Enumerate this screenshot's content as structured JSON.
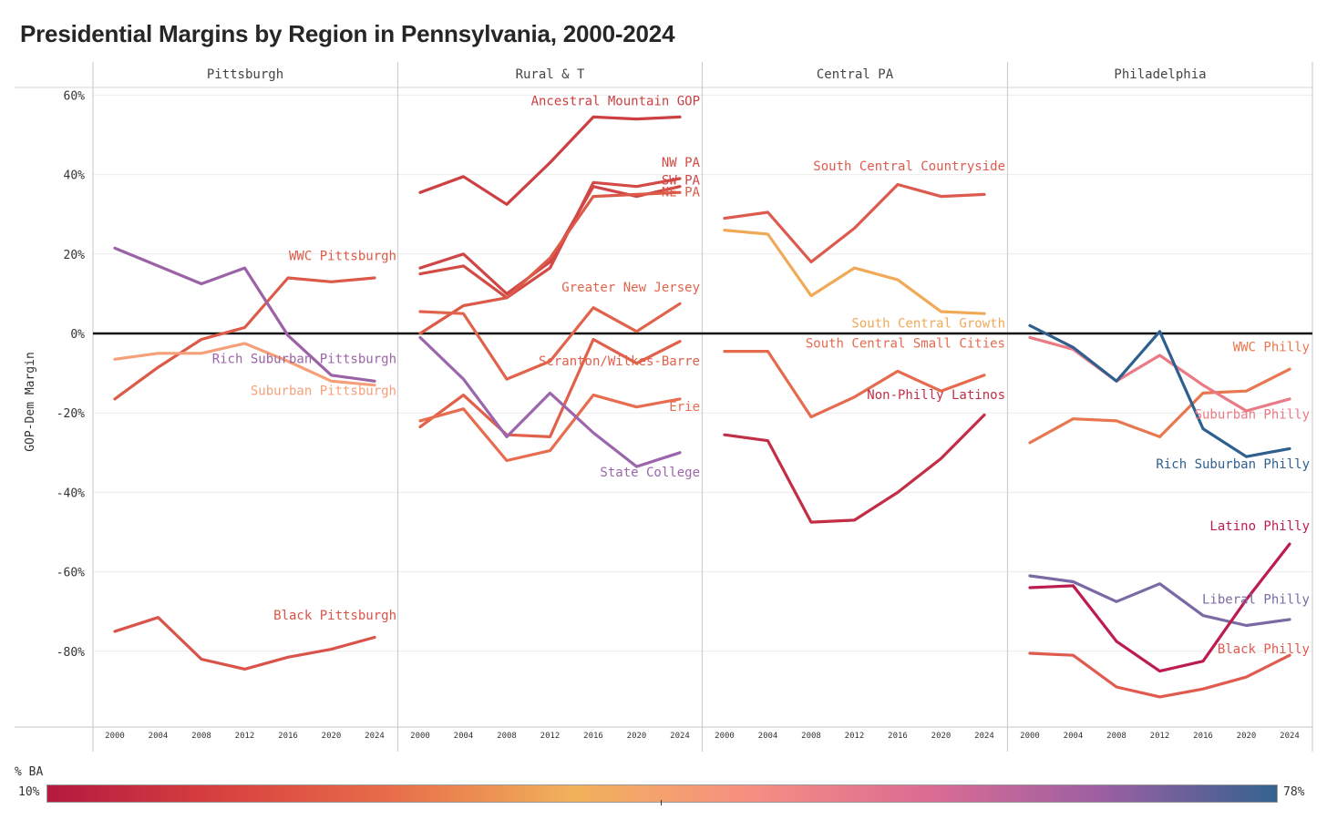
{
  "title": "Presidential Margins by Region in Pennsylvania, 2000-2024",
  "legend": {
    "title": "% BA",
    "min_label": "10%",
    "max_label": "78%",
    "gradient_colors": [
      "#b5193f",
      "#d8413f",
      "#e8704a",
      "#f1b25b",
      "#f68f82",
      "#dc6c93",
      "#9c5fa2",
      "#34628f"
    ]
  },
  "chart_data": {
    "type": "line",
    "ylabel": "GOP-Dem Margin",
    "ylim": [
      -100,
      62
    ],
    "yticks": [
      60,
      40,
      20,
      0,
      -20,
      -40,
      -60,
      -80
    ],
    "ytick_labels": [
      "60%",
      "40%",
      "20%",
      "0%",
      "-20%",
      "-40%",
      "-60%",
      "-80%"
    ],
    "x": [
      2000,
      2004,
      2008,
      2012,
      2016,
      2020,
      2024
    ],
    "x_labels": [
      "2000",
      "2004",
      "2008",
      "2012",
      "2016",
      "2020",
      "2024"
    ],
    "grid": true,
    "zero_line": true,
    "panels": [
      {
        "name": "Pittsburgh",
        "series": [
          {
            "name": "Black Pittsburgh",
            "color": "#d9534a",
            "values": [
              -75,
              -71.5,
              -82,
              -84.5,
              -81.5,
              -79.5,
              -76.5
            ]
          },
          {
            "name": "WWC Pittsburgh",
            "color": "#dc5a48",
            "values": [
              -16.5,
              -8.5,
              -1.5,
              1.5,
              14,
              13,
              14
            ]
          },
          {
            "name": "Suburban Pittsburgh",
            "color": "#f5a07a",
            "values": [
              -6.5,
              -5,
              -5,
              -2.5,
              -7,
              -12,
              -13
            ]
          },
          {
            "name": "Rich Suburban Pittsburgh",
            "color": "#9b62a6",
            "values": [
              21.5,
              17,
              12.5,
              16.5,
              -0.5,
              -10.5,
              -12
            ]
          }
        ]
      },
      {
        "name": "Rural & T",
        "series": [
          {
            "name": "Ancestral Mountain GOP",
            "color": "#cc3f42",
            "values": [
              35.5,
              39.5,
              32.5,
              43,
              54.5,
              54,
              54.5
            ]
          },
          {
            "name": "NW PA",
            "color": "#d44b45",
            "values": [
              15,
              17,
              9,
              16.5,
              38,
              37,
              39
            ]
          },
          {
            "name": "SW PA",
            "color": "#d04646",
            "values": [
              16.5,
              20,
              10,
              18,
              37,
              34.5,
              37
            ]
          },
          {
            "name": "NE PA",
            "color": "#dc5a48",
            "values": [
              0,
              7,
              9,
              19,
              34.5,
              35,
              35.5
            ]
          },
          {
            "name": "Greater New Jersey",
            "color": "#e2634c",
            "values": [
              5.5,
              5,
              -11.5,
              -7,
              6.5,
              0.5,
              7.5
            ]
          },
          {
            "name": "Scranton/Wilkes-Barre",
            "color": "#e0604a",
            "values": [
              -23.5,
              -15.5,
              -25.5,
              -26,
              -1.5,
              -7.5,
              -2
            ]
          },
          {
            "name": "Erie",
            "color": "#e86c4f",
            "values": [
              -22,
              -19,
              -32,
              -29.5,
              -15.5,
              -18.5,
              -16.5
            ]
          },
          {
            "name": "State College",
            "color": "#9b66ab",
            "values": [
              -1,
              -11.5,
              -26,
              -15,
              -25,
              -33.5,
              -30
            ]
          }
        ]
      },
      {
        "name": "Central PA",
        "series": [
          {
            "name": "South Central Countryside",
            "color": "#dd5a4e",
            "values": [
              29,
              30.5,
              18,
              26.5,
              37.5,
              34.5,
              35
            ]
          },
          {
            "name": "South Central Growth",
            "color": "#f0a957",
            "values": [
              26,
              25,
              9.5,
              16.5,
              13.5,
              5.5,
              5
            ]
          },
          {
            "name": "South Central Small Cities",
            "color": "#e66a4e",
            "values": [
              -4.5,
              -4.5,
              -21,
              -16,
              -9.5,
              -14.5,
              -10.5
            ]
          },
          {
            "name": "Non-Philly Latinos",
            "color": "#c22e46",
            "values": [
              -25.5,
              -27,
              -47.5,
              -47,
              -40,
              -31.5,
              -20.5
            ]
          }
        ]
      },
      {
        "name": "Philadelphia",
        "series": [
          {
            "name": "Black Philly",
            "color": "#e05a50",
            "values": [
              -80.5,
              -81,
              -89,
              -91.5,
              -89.5,
              -86.5,
              -81
            ]
          },
          {
            "name": "Liberal Philly",
            "color": "#7a6aa3",
            "values": [
              -61,
              -62.5,
              -67.5,
              -63,
              -71,
              -73.5,
              -72
            ]
          },
          {
            "name": "Latino Philly",
            "color": "#bd1d4e",
            "values": [
              -64,
              -63.5,
              -77.5,
              -85,
              -82.5,
              -67,
              -53
            ]
          },
          {
            "name": "WWC Philly",
            "color": "#e8774f",
            "values": [
              -27.5,
              -21.5,
              -22,
              -26,
              -15,
              -14.5,
              -9
            ]
          },
          {
            "name": "Suburban Philly",
            "color": "#ea7a86",
            "values": [
              -1,
              -4,
              -12,
              -5.5,
              -13,
              -19.5,
              -16.5
            ]
          },
          {
            "name": "Rich Suburban Philly",
            "color": "#2f5f8f",
            "values": [
              2,
              -3.5,
              -12,
              0.5,
              -24,
              -31,
              -29
            ]
          }
        ]
      }
    ]
  }
}
